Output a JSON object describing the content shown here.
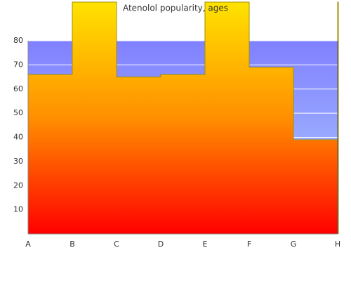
{
  "chart_data": {
    "type": "step-area",
    "title": "Atenolol popularity, ages",
    "categories": [
      "A",
      "B",
      "C",
      "D",
      "E",
      "F",
      "G",
      "H"
    ],
    "values": [
      66,
      96,
      65,
      66,
      96,
      69,
      39,
      96
    ],
    "color": "#ff8c00",
    "ylim": [
      0,
      80
    ],
    "yticks": [
      10,
      20,
      30,
      40,
      50,
      60,
      70,
      80
    ],
    "grid": true
  }
}
